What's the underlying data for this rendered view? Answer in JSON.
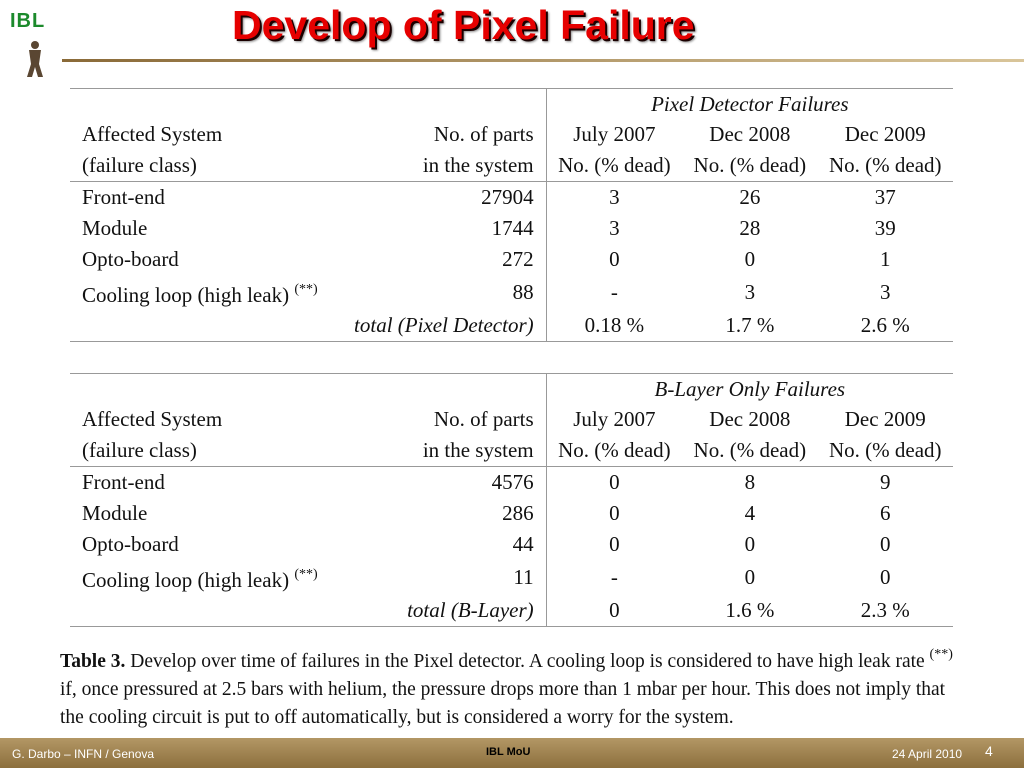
{
  "logo": {
    "text": "IBL"
  },
  "title": "Develop of Pixel Failure",
  "table1": {
    "group_header": "Pixel Detector Failures",
    "header_row1": [
      "Affected System",
      "No. of parts",
      "July 2007",
      "Dec 2008",
      "Dec 2009"
    ],
    "header_row2": [
      "(failure class)",
      "in the system",
      "No. (% dead)",
      "No. (% dead)",
      "No. (% dead)"
    ],
    "rows": [
      [
        "Front-end",
        "27904",
        "3",
        "26",
        "37"
      ],
      [
        "Module",
        "1744",
        "3",
        "28",
        "39"
      ],
      [
        "Opto-board",
        "272",
        "0",
        "0",
        "1"
      ],
      [
        "Cooling loop (high leak)",
        "88",
        "-",
        "3",
        "3"
      ]
    ],
    "sup_mark": "(**)",
    "total_label": "total (Pixel Detector)",
    "totals": [
      "0.18 %",
      "1.7 %",
      "2.6 %"
    ]
  },
  "table2": {
    "group_header": "B-Layer Only Failures",
    "header_row1": [
      "Affected System",
      "No. of parts",
      "July 2007",
      "Dec 2008",
      "Dec 2009"
    ],
    "header_row2": [
      "(failure class)",
      "in the system",
      "No. (% dead)",
      "No. (% dead)",
      "No. (% dead)"
    ],
    "rows": [
      [
        "Front-end",
        "4576",
        "0",
        "8",
        "9"
      ],
      [
        "Module",
        "286",
        "0",
        "4",
        "6"
      ],
      [
        "Opto-board",
        "44",
        "0",
        "0",
        "0"
      ],
      [
        "Cooling loop (high leak)",
        "11",
        "-",
        "0",
        "0"
      ]
    ],
    "sup_mark": "(**)",
    "total_label": "total (B-Layer)",
    "totals": [
      "0",
      "1.6 %",
      "2.3 %"
    ]
  },
  "caption": {
    "label": "Table 3.",
    "text_before_sup": " Develop over time of failures in the Pixel detector. A cooling loop is considered to have high leak rate ",
    "sup": "(**)",
    "text_after_sup": " if, once pressured at 2.5 bars with helium, the pressure drops more than 1 mbar per hour. This does not imply that the cooling circuit is put to off automatically, but is considered a worry for the system."
  },
  "footer": {
    "left": "G. Darbo – INFN / Genova",
    "center": "IBL MoU",
    "right": "24 April 2010",
    "page": "4"
  }
}
